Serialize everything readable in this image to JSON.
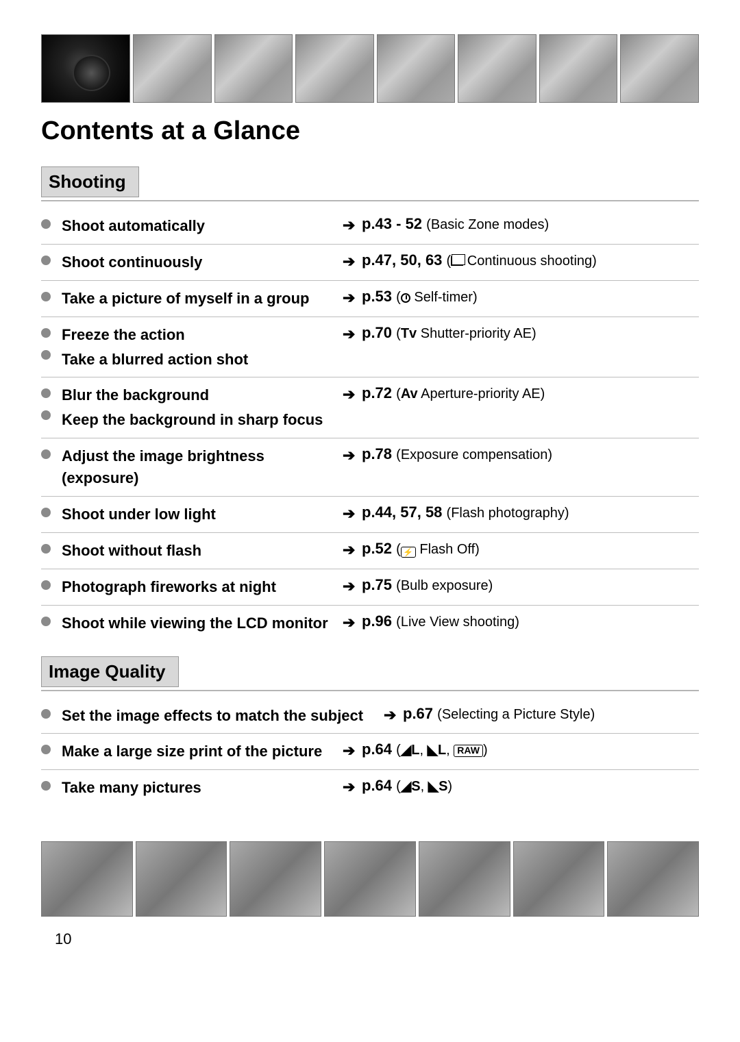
{
  "page_number": "10",
  "title": "Contents at a Glance",
  "colors": {
    "bullet": "#8a8a8a",
    "section_bg": "#d8d8d8",
    "rule": "#bdbdbd",
    "text": "#000000",
    "background": "#ffffff"
  },
  "sections": [
    {
      "header": "Shooting",
      "items": [
        {
          "labels": [
            "Shoot automatically"
          ],
          "pages": "p.43 - 52",
          "detail": "(Basic Zone modes)",
          "icon": null
        },
        {
          "labels": [
            "Shoot continuously"
          ],
          "pages": "p.47, 50, 63",
          "detail_prefix": "(",
          "detail": " Continuous shooting)",
          "icon": "burst"
        },
        {
          "labels": [
            "Take a picture of myself in a group"
          ],
          "pages": "p.53",
          "detail_prefix": "(",
          "detail": " Self-timer)",
          "icon": "timer"
        },
        {
          "labels": [
            "Freeze the action",
            "Take a blurred action shot"
          ],
          "pages": "p.70",
          "detail_prefix": "(",
          "mode": "Tv",
          "detail": " Shutter-priority AE)",
          "icon": null
        },
        {
          "labels": [
            "Blur the background",
            "Keep the background in sharp focus"
          ],
          "pages": "p.72",
          "detail_prefix": "(",
          "mode": "Av",
          "detail": " Aperture-priority AE)",
          "icon": null
        },
        {
          "labels": [
            "Adjust the image brightness (exposure)"
          ],
          "pages": "p.78",
          "detail": "(Exposure compensation)",
          "icon": null
        },
        {
          "labels": [
            "Shoot under low light"
          ],
          "pages": "p.44, 57, 58",
          "detail": "(Flash photography)",
          "icon": null
        },
        {
          "labels": [
            "Shoot without flash"
          ],
          "pages": "p.52",
          "detail_prefix": "(",
          "detail": " Flash Off)",
          "icon": "flashoff"
        },
        {
          "labels": [
            "Photograph fireworks at night"
          ],
          "pages": "p.75",
          "detail": "(Bulb exposure)",
          "icon": null
        },
        {
          "labels": [
            "Shoot while viewing the LCD monitor"
          ],
          "pages": "p.96",
          "detail": "(Live View shooting)",
          "icon": null,
          "noborder": true
        }
      ]
    },
    {
      "header": "Image Quality",
      "items": [
        {
          "labels": [
            "Set the image effects to match the subject"
          ],
          "left_width": 470,
          "pages": "p.67",
          "detail": "(Selecting a Picture Style)",
          "icon": null
        },
        {
          "labels": [
            "Make a large size print of the picture"
          ],
          "pages": "p.64",
          "quality": [
            "◢L",
            "◣L",
            "RAW"
          ],
          "icon": null
        },
        {
          "labels": [
            "Take many pictures"
          ],
          "pages": "p.64",
          "quality": [
            "◢S",
            "◣S"
          ],
          "icon": null,
          "noborder": true
        }
      ]
    }
  ]
}
